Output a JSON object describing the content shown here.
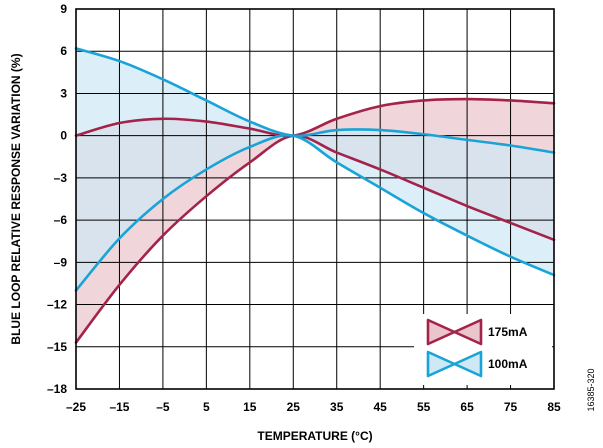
{
  "figure_id": "16385-320",
  "chart_data": {
    "type": "line",
    "title": "",
    "xlabel": "TEMPERATURE (°C)",
    "ylabel": "BLUE LOOP RELATIVE RESPONSE VARIATION (%)",
    "xlim": [
      -25,
      85
    ],
    "ylim": [
      -18,
      9
    ],
    "grid": true,
    "legend_position": "bottom-right",
    "x_ticks": [
      "–25",
      "–15",
      "–5",
      "5",
      "15",
      "25",
      "35",
      "45",
      "55",
      "65",
      "75",
      "85"
    ],
    "y_ticks": [
      "–18",
      "–15",
      "–12",
      "–9",
      "–6",
      "–3",
      "0",
      "3",
      "6",
      "9"
    ],
    "x": [
      -25,
      -15,
      -5,
      5,
      15,
      25,
      35,
      45,
      55,
      65,
      75,
      85
    ],
    "series": [
      {
        "name": "175mA",
        "color": "#a3234a",
        "fill": "#eac6cc",
        "upper": [
          0.0,
          0.9,
          1.2,
          1.0,
          0.5,
          0.0,
          1.2,
          2.1,
          2.5,
          2.6,
          2.5,
          2.3
        ],
        "lower": [
          -14.7,
          -10.6,
          -7.1,
          -4.3,
          -1.9,
          0.0,
          -1.2,
          -2.4,
          -3.7,
          -5.0,
          -6.2,
          -7.4
        ]
      },
      {
        "name": "100mA",
        "color": "#1aa3d6",
        "fill": "#cfe8f5",
        "upper": [
          6.2,
          5.3,
          4.0,
          2.5,
          1.0,
          0.0,
          0.4,
          0.4,
          0.1,
          -0.3,
          -0.7,
          -1.2
        ],
        "lower": [
          -11.0,
          -7.3,
          -4.5,
          -2.4,
          -0.8,
          0.0,
          -1.9,
          -3.7,
          -5.5,
          -7.1,
          -8.6,
          -9.9
        ]
      }
    ]
  }
}
